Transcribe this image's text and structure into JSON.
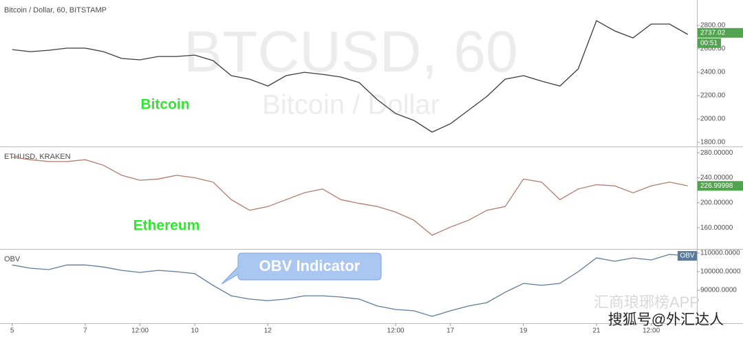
{
  "chart_data": [
    {
      "type": "line",
      "title": "Bitcoin / Dollar, 60, BITSTAMP",
      "watermark": "BTCUSD, 60",
      "watermark_subtitle": "Bitcoin / Dollar",
      "annotation": "Bitcoin",
      "annotation_color": "#2ee82e",
      "color": "#3a3a3a",
      "x": [
        0,
        12,
        24,
        36,
        48,
        60,
        72,
        84,
        96,
        108,
        120,
        132,
        144,
        156,
        168,
        180,
        192,
        204,
        216,
        228,
        240,
        252,
        264,
        276,
        288,
        300,
        312,
        324,
        336,
        348,
        360,
        372,
        384,
        396,
        408,
        420,
        432,
        444
      ],
      "values": [
        2594,
        2576,
        2588,
        2606,
        2606,
        2576,
        2518,
        2506,
        2535,
        2535,
        2547,
        2500,
        2371,
        2341,
        2282,
        2371,
        2400,
        2382,
        2359,
        2312,
        2165,
        2047,
        1988,
        1888,
        1959,
        2076,
        2194,
        2341,
        2371,
        2324,
        2282,
        2429,
        2841,
        2753,
        2694,
        2812,
        2812,
        2724
      ],
      "xlim": [
        -8,
        450
      ],
      "ylim": [
        1765,
        3018
      ],
      "yticks": [
        {
          "value": 1800,
          "label": "1800.00"
        },
        {
          "value": 2000,
          "label": "2000.00"
        },
        {
          "value": 2200,
          "label": "2200.00"
        },
        {
          "value": 2400,
          "label": "2400.00"
        },
        {
          "value": 2600,
          "label": "2600.00"
        },
        {
          "value": 2800,
          "label": "2800.00"
        }
      ],
      "last_value": 2737.02,
      "last_time": "00:51",
      "last_color": "#52a34f"
    },
    {
      "type": "line",
      "title": "ETHUSD, KRAKEN",
      "annotation": "Ethereum",
      "annotation_color": "#2ee82e",
      "color": "#b07a6e",
      "x": [
        0,
        12,
        24,
        36,
        48,
        60,
        72,
        84,
        96,
        108,
        120,
        132,
        144,
        156,
        168,
        180,
        192,
        204,
        216,
        228,
        240,
        252,
        264,
        276,
        288,
        300,
        312,
        324,
        336,
        348,
        360,
        372,
        384,
        396,
        408,
        420,
        432,
        444
      ],
      "values": [
        273,
        269,
        266,
        266,
        269,
        260,
        244,
        236,
        238,
        244,
        240,
        233,
        205,
        188,
        194,
        205,
        216,
        222,
        205,
        199,
        194,
        185,
        172,
        148,
        161,
        172,
        188,
        194,
        238,
        233,
        205,
        222,
        229,
        227,
        216,
        227,
        233,
        227
      ],
      "xlim": [
        -8,
        450
      ],
      "ylim": [
        126,
        289
      ],
      "yticks": [
        {
          "value": 160,
          "label": "160.00000"
        },
        {
          "value": 200,
          "label": "200.00000"
        },
        {
          "value": 240,
          "label": "240.00000"
        },
        {
          "value": 280,
          "label": "280.00000"
        }
      ],
      "last_value": 226.99998,
      "last_color": "#52a34f"
    },
    {
      "type": "line",
      "title": "OBV",
      "annotation": "OBV Indicator",
      "legend_label": "OBV",
      "color": "#5b7a9c",
      "x": [
        0,
        12,
        24,
        36,
        48,
        60,
        72,
        84,
        96,
        108,
        120,
        132,
        144,
        156,
        168,
        180,
        192,
        204,
        216,
        228,
        240,
        252,
        264,
        276,
        288,
        300,
        312,
        324,
        336,
        348,
        360,
        372,
        384,
        396,
        408,
        420,
        432,
        444
      ],
      "values": [
        103600,
        101850,
        101100,
        103600,
        103600,
        102500,
        100700,
        99600,
        100700,
        100000,
        98900,
        92600,
        87000,
        85200,
        84400,
        85200,
        87000,
        87000,
        86300,
        85200,
        81500,
        79600,
        78900,
        75900,
        78900,
        81500,
        83300,
        88900,
        93700,
        92600,
        93700,
        100000,
        107400,
        105600,
        107400,
        106300,
        109300,
        108500
      ],
      "xlim": [
        -8,
        450
      ],
      "ylim": [
        72200,
        111850
      ],
      "yticks": [
        {
          "value": 90000,
          "label": "90000.0000"
        },
        {
          "value": 100000,
          "label": "100000.0000"
        },
        {
          "value": 110000,
          "label": "110000.0000"
        }
      ],
      "xticks": [
        {
          "value": 0,
          "label": "5"
        },
        {
          "value": 48,
          "label": "7"
        },
        {
          "value": 84,
          "label": "12:00"
        },
        {
          "value": 120,
          "label": "10"
        },
        {
          "value": 168,
          "label": "12"
        },
        {
          "value": 252,
          "label": "12:00"
        },
        {
          "value": 288,
          "label": "17"
        },
        {
          "value": 336,
          "label": "19"
        },
        {
          "value": 384,
          "label": "21"
        },
        {
          "value": 420,
          "label": "12:00"
        }
      ]
    }
  ],
  "source_watermarks": [
    "汇商琅琊榜APP",
    "搜狐号@外汇达人"
  ]
}
